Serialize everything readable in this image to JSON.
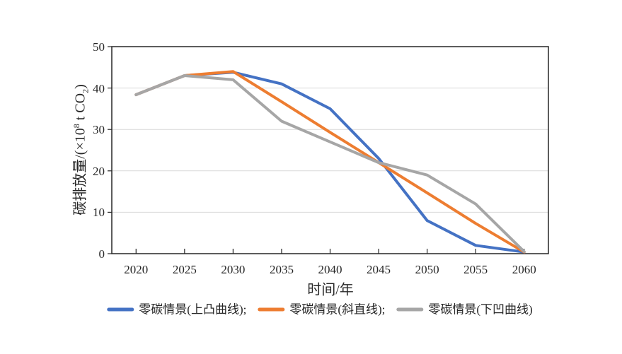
{
  "chart_data": {
    "type": "line",
    "x": [
      2020,
      2025,
      2030,
      2035,
      2040,
      2045,
      2050,
      2055,
      2060
    ],
    "series": [
      {
        "name": "零碳情景(上凸曲线)",
        "color": "#4472C4",
        "values": [
          38.4,
          43,
          43.8,
          41,
          35,
          23,
          8,
          2,
          0.4
        ]
      },
      {
        "name": "零碳情景(斜直线)",
        "color": "#ED7D31",
        "values": [
          38.4,
          43,
          44,
          36.7,
          29.3,
          22,
          14.7,
          7.3,
          0.4
        ]
      },
      {
        "name": "零碳情景(下凹曲线)",
        "color": "#A6A6A6",
        "values": [
          38.4,
          43,
          42,
          32,
          27,
          22,
          19,
          12,
          0.5
        ]
      }
    ],
    "xlabel": "时间/年",
    "ylabel": "碳排放量/(×10⁸ t CO₂)",
    "ylim": [
      0,
      50
    ],
    "ytick_step": 10,
    "grid": "horizontal",
    "legend_position": "bottom"
  },
  "axes": {
    "y_ticks": [
      "0",
      "10",
      "20",
      "30",
      "40",
      "50"
    ],
    "x_ticks": [
      "2020",
      "2025",
      "2030",
      "2035",
      "2040",
      "2045",
      "2050",
      "2055",
      "2060"
    ],
    "x_title": "时间/年",
    "y_title_parts": {
      "prefix": "碳排放量/(×10",
      "sup": "8",
      "mid": " t CO",
      "sub": "2",
      "suffix": ")"
    }
  },
  "legend": {
    "items": [
      {
        "id": "convex",
        "label": "零碳情景(上凸曲线);",
        "color": "#4472C4"
      },
      {
        "id": "straight",
        "label": "零碳情景(斜直线);",
        "color": "#ED7D31"
      },
      {
        "id": "concave",
        "label": "零碳情景(下凹曲线)",
        "color": "#A6A6A6"
      }
    ]
  },
  "colors": {
    "background": "#FFFFFF",
    "grid": "#D9D9D9",
    "axis": "#262626",
    "text": "#262626"
  }
}
